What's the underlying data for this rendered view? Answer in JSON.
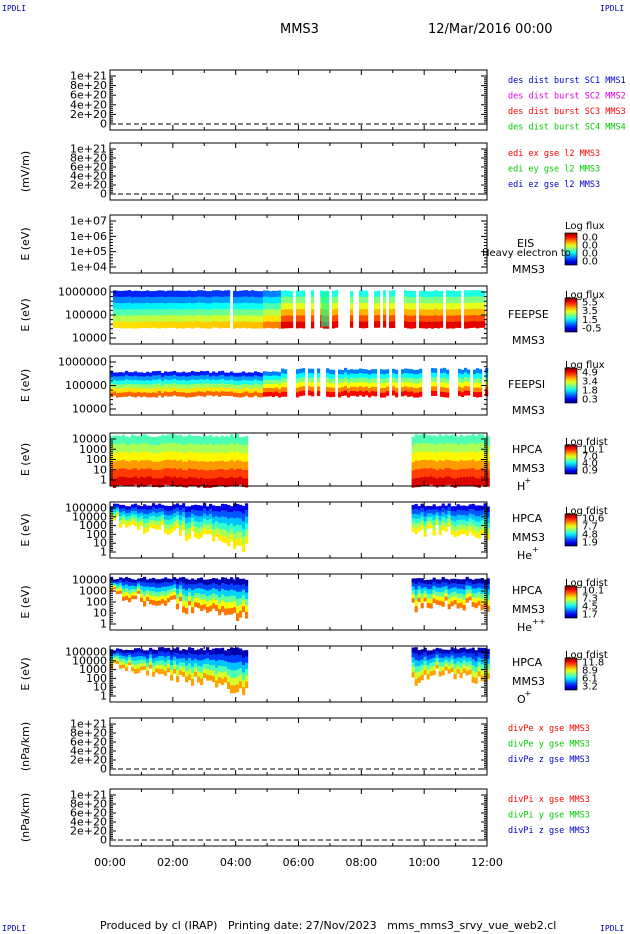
{
  "corner": {
    "tl": "IPDLI",
    "tr": "IPDLI",
    "bl": "IPDLI",
    "br": "IPDLI"
  },
  "header": {
    "title": "MMS3",
    "date": "12/Mar/2016 00:00"
  },
  "footer": {
    "text": "Produced by cl (IRAP)   Printing date: 27/Nov/2023   mms_mms3_srvy_vue_web2.cl"
  },
  "colors": {
    "red": "#ff0000",
    "green": "#00cc00",
    "blue": "#0000cc",
    "magenta": "#e000e0"
  },
  "chart_data": [
    {
      "type": "line",
      "ylabel": "",
      "yticks": [
        "1e+21",
        "8e+20",
        "6e+20",
        "4e+20",
        "2e+20",
        "0"
      ],
      "dashed_zero": true,
      "xticks": [
        "00:00",
        "02:00",
        "04:00",
        "06:00",
        "08:00",
        "10:00",
        "12:00"
      ],
      "xlim": [
        "00:00",
        "12:00"
      ],
      "legend": [
        {
          "text": "des dist burst SC1 MMS1",
          "color": "#0000cc"
        },
        {
          "text": "des dist burst SC2 MMS2",
          "color": "#e000e0"
        },
        {
          "text": "des dist burst SC3 MMS3",
          "color": "#ff0000"
        },
        {
          "text": "des dist burst SC4 MMS4",
          "color": "#00cc00"
        }
      ]
    },
    {
      "type": "line",
      "ylabel": "(mV/m)",
      "yticks": [
        "1e+21",
        "8e+20",
        "6e+20",
        "4e+20",
        "2e+20",
        "0"
      ],
      "dashed_zero": true,
      "legend": [
        {
          "text": "edi ex gse l2 MMS3",
          "color": "#ff0000"
        },
        {
          "text": "edi ey gse l2 MMS3",
          "color": "#00cc00"
        },
        {
          "text": "edi ez gse l2 MMS3",
          "color": "#0000cc"
        }
      ]
    },
    {
      "type": "heatmap",
      "ylabel": "E (eV)",
      "yticks": [
        "1e+07",
        "1e+06",
        "1e+05",
        "1e+04"
      ],
      "scale": "log",
      "right_labels": [
        "EIS",
        "MMS3"
      ],
      "overlay": "Heavy electron to",
      "cbar_title": "Log flux",
      "cbar_ticks": [
        "0.0",
        "0.0",
        "0.0",
        "0.0"
      ]
    },
    {
      "type": "heatmap",
      "ylabel": "E (eV)",
      "yticks": [
        "1000000",
        "100000",
        "10000"
      ],
      "scale": "log",
      "right_labels": [
        "FEEPSE",
        "MMS3"
      ],
      "cbar_title": "Log flux",
      "cbar_ticks": [
        "5.5",
        "3.5",
        "1.5",
        "-0.5"
      ]
    },
    {
      "type": "heatmap",
      "ylabel": "E (eV)",
      "yticks": [
        "1000000",
        "100000",
        "10000"
      ],
      "scale": "log",
      "right_labels": [
        "FEEPSI",
        "MMS3"
      ],
      "cbar_title": "Log flux",
      "cbar_ticks": [
        "4.9",
        "3.4",
        "1.8",
        "0.3"
      ]
    },
    {
      "type": "heatmap",
      "ylabel": "E (eV)",
      "yticks": [
        "10000",
        "1000",
        "100",
        "10",
        "1"
      ],
      "scale": "log",
      "right_labels": [
        "HPCA",
        "MMS3"
      ],
      "species": "H",
      "sup": "+",
      "cbar_title": "Log fdist",
      "cbar_ticks": [
        "10.1",
        "7.0",
        "4.0",
        "0.9"
      ]
    },
    {
      "type": "heatmap",
      "ylabel": "E (eV)",
      "yticks": [
        "100000",
        "10000",
        "1000",
        "100",
        "10",
        "1"
      ],
      "scale": "log",
      "right_labels": [
        "HPCA",
        "MMS3"
      ],
      "species": "He",
      "sup": "+",
      "cbar_title": "Log fdist",
      "cbar_ticks": [
        "10.6",
        "7.7",
        "4.8",
        "1.9"
      ]
    },
    {
      "type": "heatmap",
      "ylabel": "E (eV)",
      "yticks": [
        "10000",
        "1000",
        "100",
        "10",
        "1"
      ],
      "scale": "log",
      "right_labels": [
        "HPCA",
        "MMS3"
      ],
      "species": "He",
      "sup": "++",
      "cbar_title": "Log fdist",
      "cbar_ticks": [
        "10.1",
        "7.3",
        "4.5",
        "1.7"
      ]
    },
    {
      "type": "heatmap",
      "ylabel": "E (eV)",
      "yticks": [
        "100000",
        "10000",
        "1000",
        "100",
        "10",
        "1"
      ],
      "scale": "log",
      "right_labels": [
        "HPCA",
        "MMS3"
      ],
      "species": "O",
      "sup": "+",
      "cbar_title": "Log fdist",
      "cbar_ticks": [
        "11.8",
        "8.9",
        "6.1",
        "3.2"
      ]
    },
    {
      "type": "line",
      "ylabel": "(nPa/km)",
      "yticks": [
        "1e+21",
        "8e+20",
        "6e+20",
        "4e+20",
        "2e+20",
        "0"
      ],
      "dashed_zero": true,
      "legend": [
        {
          "text": "divPe x gse MMS3",
          "color": "#ff0000"
        },
        {
          "text": "divPe y gse MMS3",
          "color": "#00cc00"
        },
        {
          "text": "divPe z gse MMS3",
          "color": "#0000cc"
        }
      ]
    },
    {
      "type": "line",
      "ylabel": "(nPa/km)",
      "yticks": [
        "1e+21",
        "8e+20",
        "6e+20",
        "4e+20",
        "2e+20",
        "0"
      ],
      "dashed_zero": true,
      "legend": [
        {
          "text": "divPi x gse MMS3",
          "color": "#ff0000"
        },
        {
          "text": "divPi y gse MMS3",
          "color": "#00cc00"
        },
        {
          "text": "divPi z gse MMS3",
          "color": "#0000cc"
        }
      ]
    }
  ]
}
